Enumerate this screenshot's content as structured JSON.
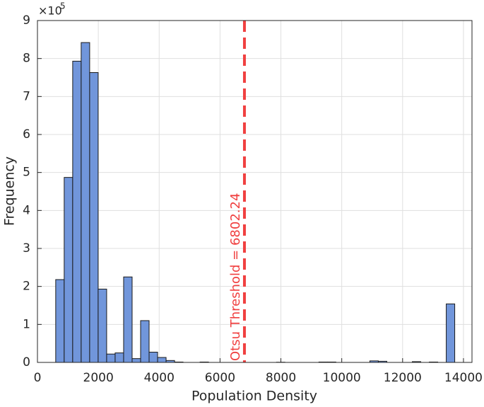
{
  "chart_data": {
    "type": "histogram",
    "xlabel": "Population Density",
    "ylabel": "Frequency",
    "y_multiplier_base": "×10",
    "y_multiplier_exponent": "5",
    "bins": [
      600,
      879,
      1158,
      1437,
      1716,
      1995,
      2274,
      2553,
      2832,
      3111,
      3390,
      3669,
      3948,
      4227,
      4506,
      4785,
      5064,
      5343,
      5622,
      5901,
      6180,
      6459,
      6738,
      7017,
      7296,
      7575,
      7854,
      8133,
      8412,
      8691,
      8970,
      9249,
      9528,
      9807,
      10086,
      10365,
      10644,
      10923,
      11202,
      11481,
      11760,
      12039,
      12318,
      12597,
      12876,
      13155,
      13434,
      13713
    ],
    "values": [
      2.18,
      4.87,
      7.93,
      8.42,
      7.63,
      1.93,
      0.22,
      0.25,
      2.25,
      0.1,
      1.1,
      0.27,
      0.13,
      0.05,
      0.01,
      0,
      0,
      0.01,
      0,
      0,
      0,
      0,
      0,
      0,
      0,
      0,
      0.005,
      0,
      0,
      0,
      0,
      0.01,
      0.01,
      0,
      0,
      0,
      0,
      0.04,
      0.03,
      0,
      0,
      0,
      0.02,
      0,
      0.01,
      0,
      1.54
    ],
    "color": "#7196db",
    "threshold": {
      "value": 6802.24,
      "label": "Otsu Threshold = 6802.24",
      "color": "#f04040"
    },
    "xlim": [
      0,
      14280
    ],
    "ylim": [
      0,
      9
    ],
    "xticks": [
      0,
      2000,
      4000,
      6000,
      8000,
      10000,
      12000,
      14000
    ],
    "yticks": [
      0,
      1,
      2,
      3,
      4,
      5,
      6,
      7,
      8,
      9
    ],
    "grid": true
  }
}
